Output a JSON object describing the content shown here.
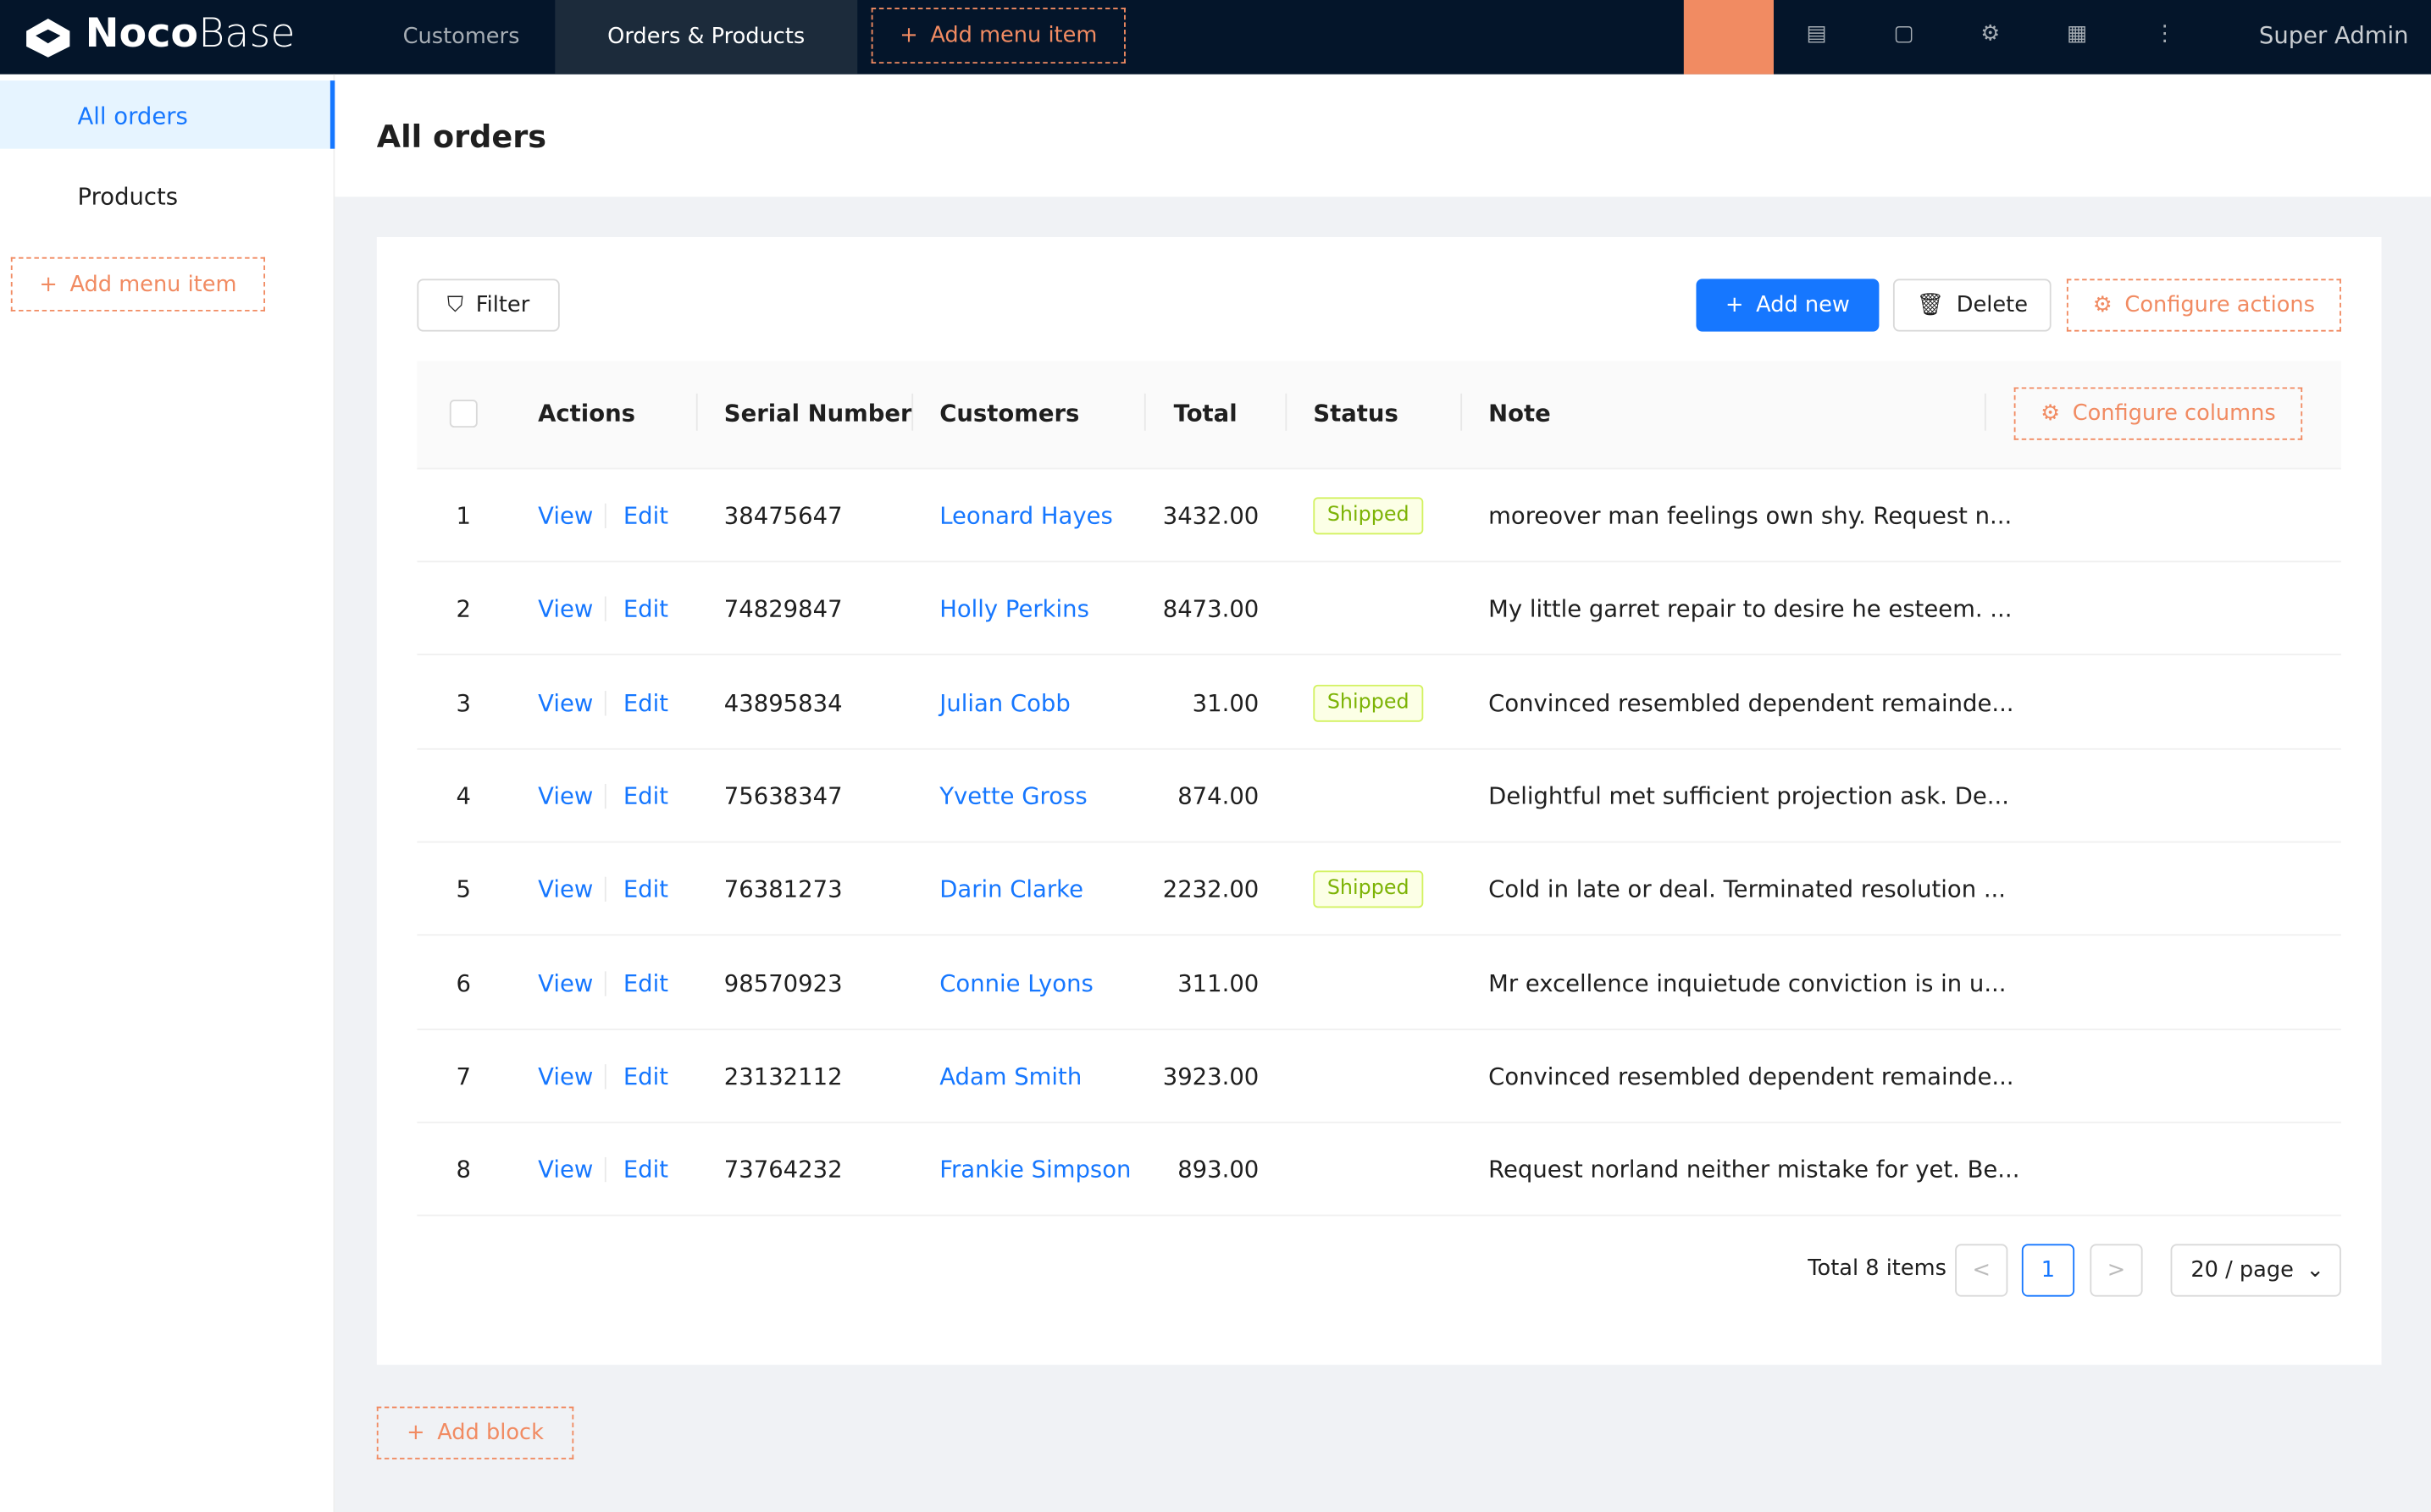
{
  "header": {
    "logo_bold": "Noco",
    "logo_light": "Base",
    "menu": [
      "Customers",
      "Orders & Products"
    ],
    "add_menu_item": "Add menu item",
    "user": "Super Admin"
  },
  "sidebar": {
    "items": [
      "All orders",
      "Products"
    ],
    "add_menu_item": "Add menu item"
  },
  "page": {
    "title": "All orders"
  },
  "toolbar": {
    "filter": "Filter",
    "add_new": "Add new",
    "delete": "Delete",
    "configure_actions": "Configure actions"
  },
  "table": {
    "columns": [
      "Actions",
      "Serial Number",
      "Customers",
      "Total",
      "Status",
      "Note"
    ],
    "configure_columns": "Configure columns",
    "view": "View",
    "edit": "Edit",
    "rows": [
      {
        "no": 1,
        "serial": "38475647",
        "customer": "Leonard Hayes",
        "total": "3432.00",
        "status": "Shipped",
        "note": "moreover man feelings own shy. Request n..."
      },
      {
        "no": 2,
        "serial": "74829847",
        "customer": "Holly Perkins",
        "total": "8473.00",
        "note": "My little garret repair to desire he esteem. ..."
      },
      {
        "no": 3,
        "serial": "43895834",
        "customer": "Julian Cobb",
        "total": "31.00",
        "status": "Shipped",
        "note": "Convinced resembled dependent remainde..."
      },
      {
        "no": 4,
        "serial": "75638347",
        "customer": "Yvette Gross",
        "total": "874.00",
        "note": "Delightful met sufficient projection ask. De..."
      },
      {
        "no": 5,
        "serial": "76381273",
        "customer": "Darin Clarke",
        "total": "2232.00",
        "status": "Shipped",
        "note": "Cold in late or deal. Terminated resolution ..."
      },
      {
        "no": 6,
        "serial": "98570923",
        "customer": "Connie Lyons",
        "total": "311.00",
        "note": "Mr excellence inquietude conviction is in u..."
      },
      {
        "no": 7,
        "serial": "23132112",
        "customer": "Adam Smith",
        "total": "3923.00",
        "note": "Convinced resembled dependent remainde..."
      },
      {
        "no": 8,
        "serial": "73764232",
        "customer": "Frankie Simpson",
        "total": "893.00",
        "note": "Request norland neither mistake for yet. Be..."
      }
    ]
  },
  "pagination": {
    "total": "Total 8 items",
    "page": "1",
    "page_size": "20 / page"
  },
  "footer": {
    "add_block": "Add block"
  }
}
